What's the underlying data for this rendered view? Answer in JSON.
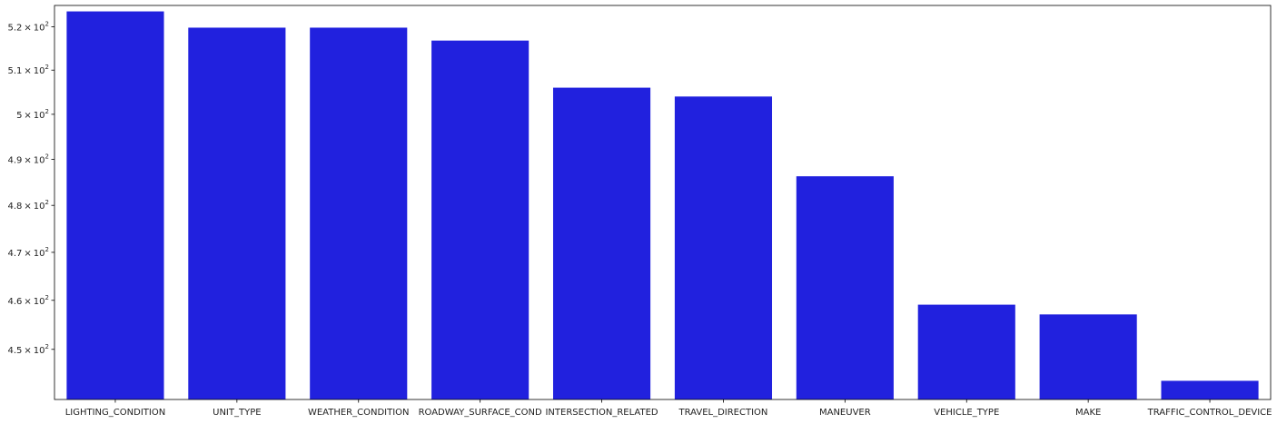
{
  "chart_data": {
    "type": "bar",
    "yscale": "log",
    "categories": [
      "LIGHTING_CONDITION",
      "UNIT_TYPE",
      "WEATHER_CONDITION",
      "ROADWAY_SURFACE_COND",
      "INTERSECTION_RELATED",
      "TRAVEL_DIRECTION",
      "MANEUVER",
      "VEHICLE_TYPE",
      "MAKE",
      "TRAFFIC_CONTROL_DEVICE"
    ],
    "values": [
      523.6,
      519.8,
      519.8,
      516.8,
      506.0,
      504.0,
      486.3,
      459.1,
      457.1,
      443.7
    ],
    "bar_color": "#2121de",
    "ylim": [
      440.0,
      525.0
    ],
    "yticks": [
      {
        "value": 450,
        "mantissa": "4.5"
      },
      {
        "value": 460,
        "mantissa": "4.6"
      },
      {
        "value": 470,
        "mantissa": "4.7"
      },
      {
        "value": 480,
        "mantissa": "4.8"
      },
      {
        "value": 490,
        "mantissa": "4.9"
      },
      {
        "value": 500,
        "mantissa": "5"
      },
      {
        "value": 510,
        "mantissa": "5.1"
      },
      {
        "value": 520,
        "mantissa": "5.2"
      }
    ],
    "ytick_base": "10",
    "ytick_exponent": "2",
    "ytick_times": "×",
    "title": "",
    "xlabel": "",
    "ylabel": "",
    "grid": false,
    "legend": "none"
  }
}
